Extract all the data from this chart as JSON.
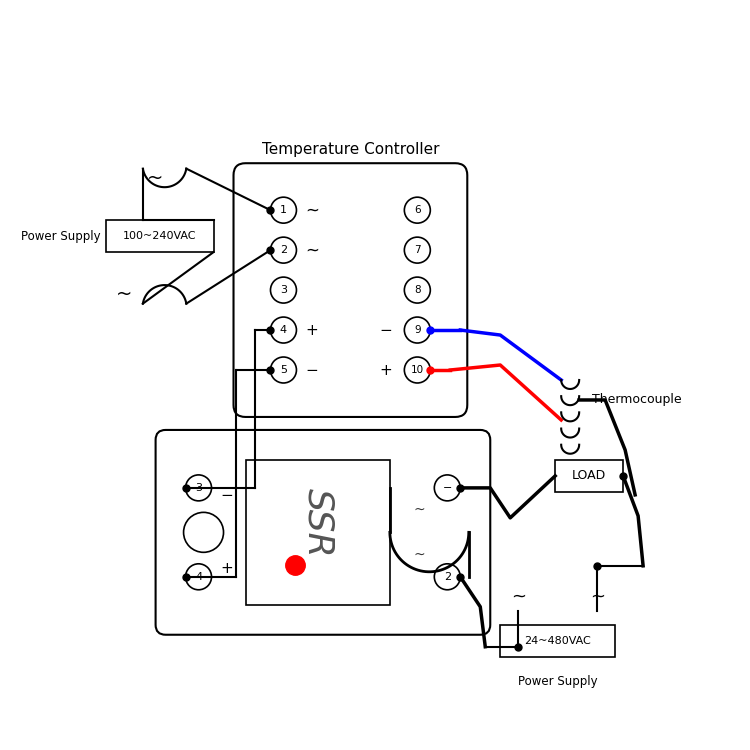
{
  "bg_color": "#ffffff",
  "line_color": "#000000",
  "blue_wire": "#0000ff",
  "red_wire": "#ff0000",
  "red_dot": "#ff0000",
  "tc_label": "Temperature Controller",
  "ps1_label": "Power Supply",
  "ps2_label": "Power Supply",
  "load_label": "LOAD",
  "tc_text": "Thermocouple",
  "ps1_text": "100~240VAC",
  "ps2_text": "24~480VAC",
  "ssr_text": "SSR",
  "figsize": [
    7.5,
    7.5
  ],
  "dpi": 100
}
